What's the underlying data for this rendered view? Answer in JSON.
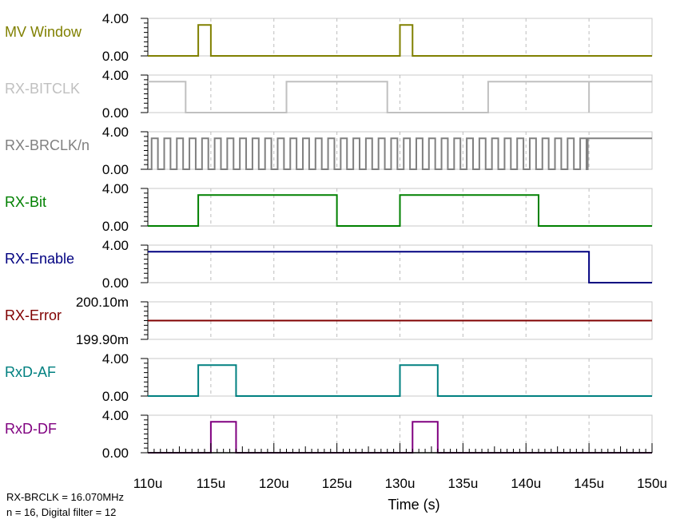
{
  "chart_data": {
    "type": "line",
    "xlabel": "Time (s)",
    "xlim": [
      110,
      150
    ],
    "x_unit": "u",
    "x_ticks": [
      "110u",
      "115u",
      "120u",
      "125u",
      "130u",
      "135u",
      "140u",
      "145u",
      "150u"
    ],
    "grid": "vertical dashed",
    "panels": [
      {
        "name": "MV Window",
        "color": "#808000",
        "yticks": [
          "4.00",
          "0.00"
        ],
        "ylim": [
          0,
          4
        ],
        "x": [
          110,
          114,
          114,
          115,
          115,
          130,
          130,
          131,
          131,
          150
        ],
        "y": [
          0,
          0,
          3.3,
          3.3,
          0,
          0,
          3.3,
          3.3,
          0,
          0
        ]
      },
      {
        "name": "RX-BITCLK",
        "color": "#c0c0c0",
        "yticks": [
          "4.00",
          "0.00"
        ],
        "ylim": [
          0,
          4
        ],
        "x": [
          110,
          113,
          113,
          121,
          121,
          129,
          129,
          137,
          137,
          145,
          145,
          145,
          145,
          150
        ],
        "y": [
          3.3,
          3.3,
          0,
          0,
          3.3,
          3.3,
          0,
          0,
          3.3,
          3.3,
          0,
          0,
          3.3,
          3.3
        ]
      },
      {
        "name": "RX-BRCLK/n",
        "color": "#808080",
        "yticks": [
          "4.00",
          "0.00"
        ],
        "ylim": [
          0,
          4
        ],
        "clock": {
          "start": 110.3,
          "end": 144.9,
          "period": 1.0,
          "high": 3.3,
          "low": 0,
          "final": 3.3
        }
      },
      {
        "name": "RX-Bit",
        "color": "#008000",
        "yticks": [
          "4.00",
          "0.00"
        ],
        "ylim": [
          0,
          4
        ],
        "x": [
          110,
          114,
          114,
          125,
          125,
          130,
          130,
          141,
          141,
          150
        ],
        "y": [
          0,
          0,
          3.3,
          3.3,
          0,
          0,
          3.3,
          3.3,
          0,
          0
        ]
      },
      {
        "name": "RX-Enable",
        "color": "#000080",
        "yticks": [
          "4.00",
          "0.00"
        ],
        "ylim": [
          0,
          4
        ],
        "x": [
          110,
          145,
          145,
          150
        ],
        "y": [
          3.3,
          3.3,
          0,
          0
        ]
      },
      {
        "name": "RX-Error",
        "color": "#800000",
        "yticks": [
          "200.10m",
          "199.90m"
        ],
        "ylim": [
          199.9,
          200.1
        ],
        "x": [
          110,
          150
        ],
        "y": [
          200.0,
          200.0
        ]
      },
      {
        "name": "RxD-AF",
        "color": "#008080",
        "yticks": [
          "4.00",
          "0.00"
        ],
        "ylim": [
          0,
          4
        ],
        "x": [
          110,
          114,
          114,
          117,
          117,
          130,
          130,
          133,
          133,
          150
        ],
        "y": [
          0,
          0,
          3.3,
          3.3,
          0,
          0,
          3.3,
          3.3,
          0,
          0
        ]
      },
      {
        "name": "RxD-DF",
        "color": "#800080",
        "yticks": [
          "4.00",
          "0.00"
        ],
        "ylim": [
          0,
          4
        ],
        "x": [
          110,
          115,
          115,
          117,
          117,
          131,
          131,
          133,
          133,
          150
        ],
        "y": [
          0,
          0,
          3.3,
          3.3,
          0,
          0,
          3.3,
          3.3,
          0,
          0
        ]
      }
    ]
  },
  "footnote": {
    "line1": "RX-BRCLK = 16.070MHz",
    "line2": "n = 16, Digital filter = 12"
  }
}
